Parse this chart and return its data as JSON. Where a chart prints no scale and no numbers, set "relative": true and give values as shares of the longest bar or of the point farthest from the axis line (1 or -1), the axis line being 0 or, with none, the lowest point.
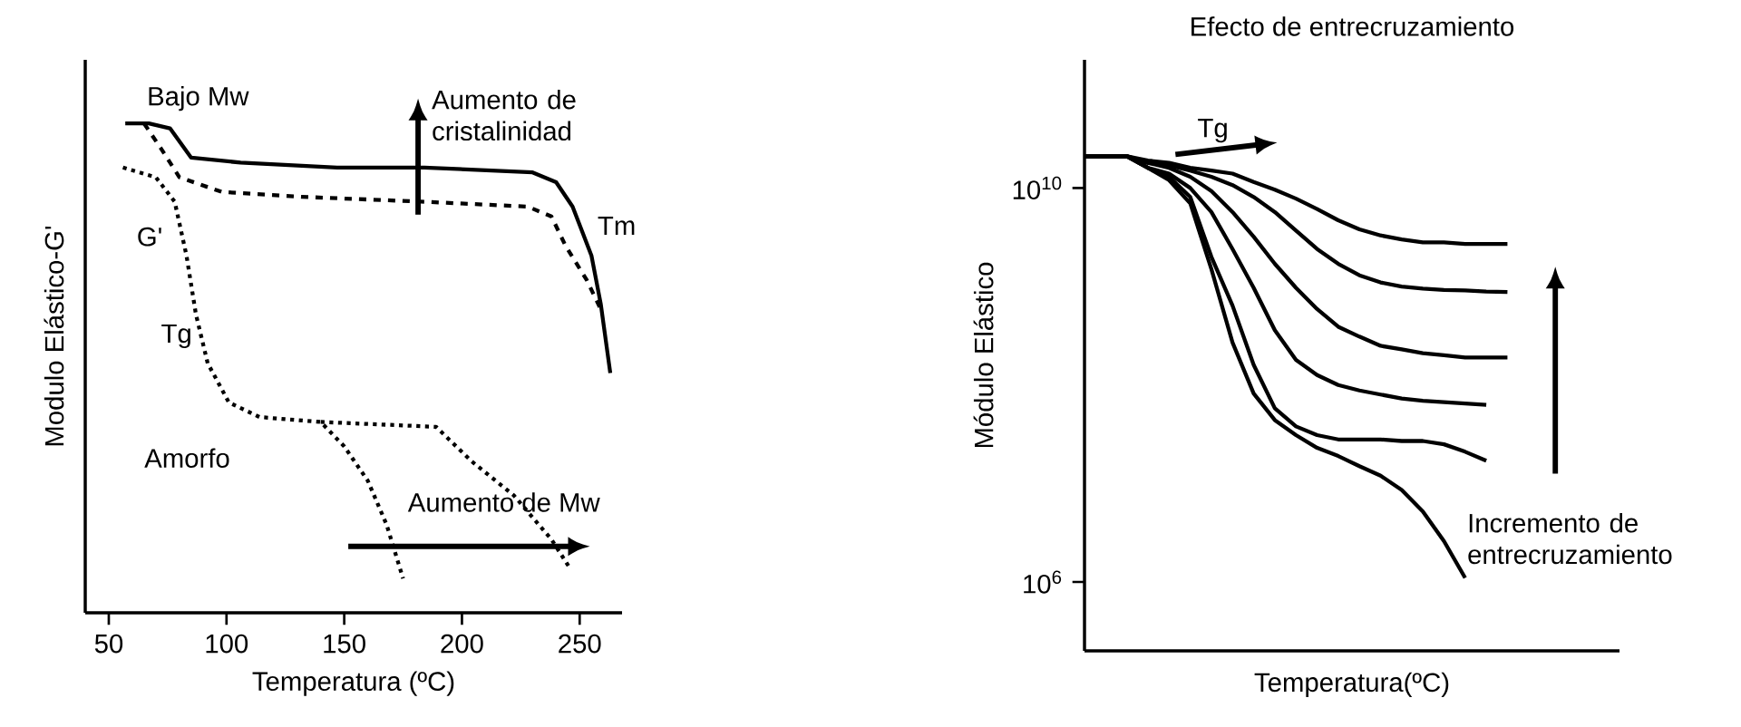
{
  "chart_data": [
    {
      "type": "line",
      "relative": true,
      "xlabel": "Temperatura (ºC)",
      "ylabel": "Modulo Elástico-G'",
      "xlim": [
        40,
        268
      ],
      "xticks": [
        50,
        100,
        150,
        200,
        250
      ],
      "annotations": [
        "Bajo Mw",
        "Aumento de cristalinidad",
        "Tm",
        "G'",
        "Tg",
        "Amorfo",
        "Aumento de Mw"
      ],
      "series": [
        {
          "color": "#000000",
          "line_style": "solid",
          "x": [
            57,
            67,
            76,
            85,
            106,
            147,
            184,
            230,
            240,
            247,
            255,
            259,
            261,
            263
          ],
          "values": [
            1.0,
            1.0,
            0.99,
            0.93,
            0.92,
            0.91,
            0.91,
            0.9,
            0.88,
            0.83,
            0.73,
            0.63,
            0.56,
            0.49
          ]
        },
        {
          "color": "#000000",
          "line_style": "dashed",
          "x": [
            65,
            72,
            80,
            98,
            132,
            184,
            228,
            238,
            244,
            253,
            259
          ],
          "values": [
            1.0,
            0.95,
            0.89,
            0.86,
            0.85,
            0.84,
            0.83,
            0.81,
            0.75,
            0.68,
            0.62
          ]
        },
        {
          "color": "#000000",
          "line_style": "dotted",
          "x": [
            56,
            70,
            78,
            83,
            87,
            92,
            101,
            114,
            140,
            150,
            160,
            168,
            175
          ],
          "values": [
            0.91,
            0.89,
            0.84,
            0.73,
            0.61,
            0.51,
            0.43,
            0.4,
            0.39,
            0.34,
            0.27,
            0.18,
            0.07
          ]
        },
        {
          "color": "#000000",
          "line_style": "dotted",
          "x": [
            140,
            189,
            204,
            222,
            238,
            246
          ],
          "values": [
            0.39,
            0.38,
            0.31,
            0.24,
            0.15,
            0.09
          ]
        }
      ]
    },
    {
      "type": "line",
      "title": "Efecto de entrecruzamiento",
      "xlabel": "Temperatura(ºC)",
      "ylabel": "Módulo Elástico",
      "log": "y",
      "tick_labels": "y",
      "ylim": [
        200000.0,
        200000000000.0
      ],
      "yticks": [
        {
          "value": 10000000000.0,
          "label": "10$^{10}$"
        },
        {
          "value": 1000000.0,
          "label": "10$^{6}$"
        }
      ],
      "annotations": [
        "Tg",
        "Incremento de entrecruzamiento"
      ],
      "categories": [
        null,
        null,
        null,
        null,
        null,
        null,
        null,
        null,
        null,
        null,
        null,
        null,
        null,
        null,
        null,
        null,
        null,
        null,
        null,
        null,
        null,
        null,
        null,
        null,
        null,
        null
      ],
      "series": [
        {
          "color": "#000000",
          "values": [
            21000000000.0,
            21000000000.0,
            21000000000.0,
            19000000000.0,
            18000000000.0,
            16000000000.0,
            15000000000.0,
            14000000000.0,
            11500000000.0,
            9600000000.0,
            7800000000.0,
            6100000000.0,
            4700000000.0,
            3800000000.0,
            3300000000.0,
            3000000000.0,
            2800000000.0,
            2800000000.0,
            2700000000.0,
            2700000000.0,
            2700000000.0,
            null,
            null,
            null,
            null,
            null
          ]
        },
        {
          "color": "#000000",
          "values": [
            21000000000.0,
            21000000000.0,
            21000000000.0,
            18000000000.0,
            17000000000.0,
            15000000000.0,
            13000000000.0,
            10700000000.0,
            8100000000.0,
            5700000000.0,
            3700000000.0,
            2400000000.0,
            1700000000.0,
            1300000000.0,
            1100000000.0,
            1000000000.0,
            950000000.0,
            920000000.0,
            910000000.0,
            890000000.0,
            880000000.0,
            null,
            null,
            null,
            null,
            null
          ]
        },
        {
          "color": "#000000",
          "values": [
            21000000000.0,
            21000000000.0,
            21000000000.0,
            18000000000.0,
            16000000000.0,
            13000000000.0,
            9300000000.0,
            5700000000.0,
            3200000000.0,
            1700000000.0,
            970000000.0,
            590000000.0,
            390000000.0,
            310000000.0,
            250000000.0,
            230000000.0,
            210000000.0,
            200000000.0,
            190000000.0,
            190000000.0,
            190000000.0,
            null,
            null,
            null,
            null,
            null
          ]
        },
        {
          "color": "#000000",
          "values": [
            21000000000.0,
            21000000000.0,
            21000000000.0,
            16000000000.0,
            14000000000.0,
            10000000000.0,
            5700000000.0,
            2400000000.0,
            970000000.0,
            360000000.0,
            180000000.0,
            126000000.0,
            100000000.0,
            88000000.0,
            80000000.0,
            73000000.0,
            69000000.0,
            67000000.0,
            65000000.0,
            63000000.0,
            null,
            null,
            null,
            null,
            null,
            null
          ]
        },
        {
          "color": "#000000",
          "values": [
            21000000000.0,
            21000000000.0,
            21000000000.0,
            16000000000.0,
            13000000000.0,
            8100000000.0,
            2000000000.0,
            640000000.0,
            160000000.0,
            58000000.0,
            38000000.0,
            31000000.0,
            28000000.0,
            28000000.0,
            28000000.0,
            27000000.0,
            27000000.0,
            25000000.0,
            21000000.0,
            17000000.0,
            null,
            null,
            null,
            null,
            null,
            null
          ]
        },
        {
          "color": "#000000",
          "values": [
            21000000000.0,
            21000000000.0,
            21000000000.0,
            16000000000.0,
            12000000000.0,
            7000000000.0,
            1500000000.0,
            270000000.0,
            82000000.0,
            44000000.0,
            31000000.0,
            23000000.0,
            19000000.0,
            15000000.0,
            12000000.0,
            8600000.0,
            5200000.0,
            2600000.0,
            1100000.0,
            null,
            null,
            null,
            null,
            null,
            null,
            null
          ]
        }
      ]
    }
  ]
}
